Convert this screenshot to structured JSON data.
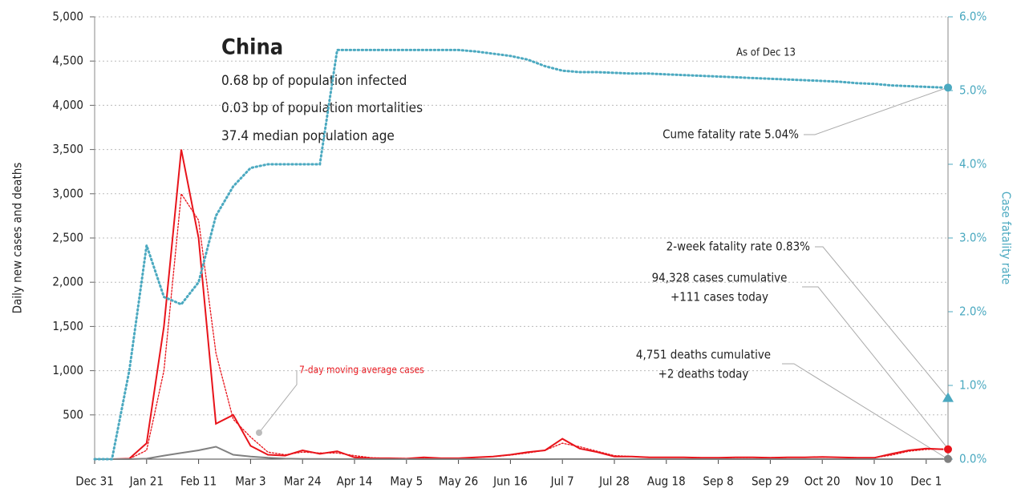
{
  "chart_data": {
    "type": "line",
    "title": "China",
    "subtitle": [
      "0.68 bp of population infected",
      "0.03 bp of population mortalities",
      "37.4 median population age"
    ],
    "ylabel": "Daily new cases and deaths",
    "y2label": "Case fatality rate",
    "categories": [
      "Dec 31",
      null,
      null,
      "Jan 21",
      null,
      null,
      "Feb 11",
      null,
      null,
      "Mar 3",
      null,
      null,
      "Mar 24",
      null,
      null,
      "Apr 14",
      null,
      null,
      "May 5",
      null,
      null,
      "May 26",
      null,
      null,
      "Jun 16",
      null,
      null,
      "Jul 7",
      null,
      null,
      "Jul 28",
      null,
      null,
      "Aug 18",
      null,
      null,
      "Sep 8",
      null,
      null,
      "Sep 29",
      null,
      null,
      "Oct 20",
      null,
      null,
      "Nov 10",
      null,
      null,
      "Dec 1",
      null
    ],
    "series": [
      {
        "name": "Daily new cases",
        "color": "#e8141b",
        "style": "solid",
        "values": [
          0,
          0,
          5,
          180,
          1500,
          3500,
          2500,
          400,
          500,
          150,
          50,
          40,
          100,
          60,
          90,
          20,
          10,
          10,
          5,
          20,
          10,
          10,
          20,
          30,
          50,
          80,
          100,
          230,
          120,
          80,
          30,
          30,
          20,
          20,
          20,
          15,
          15,
          20,
          20,
          15,
          20,
          20,
          25,
          20,
          15,
          15,
          60,
          100,
          120,
          111
        ]
      },
      {
        "name": "7-day moving average cases",
        "color": "#e8141b",
        "style": "dotted",
        "values": [
          0,
          0,
          3,
          100,
          1000,
          3000,
          2700,
          1200,
          450,
          250,
          80,
          50,
          80,
          70,
          70,
          40,
          15,
          10,
          8,
          15,
          12,
          12,
          18,
          28,
          45,
          70,
          100,
          180,
          140,
          90,
          40,
          30,
          22,
          20,
          20,
          17,
          16,
          18,
          19,
          17,
          19,
          20,
          22,
          20,
          17,
          16,
          45,
          90,
          110,
          115
        ]
      },
      {
        "name": "Daily new deaths",
        "color": "#808080",
        "style": "solid",
        "values": [
          0,
          0,
          0,
          5,
          40,
          70,
          100,
          140,
          50,
          30,
          15,
          5,
          3,
          2,
          1,
          1,
          0,
          0,
          0,
          0,
          0,
          0,
          0,
          0,
          0,
          0,
          0,
          1,
          1,
          1,
          0,
          0,
          0,
          0,
          0,
          0,
          0,
          0,
          0,
          0,
          0,
          0,
          0,
          0,
          0,
          0,
          0,
          1,
          1,
          2
        ]
      },
      {
        "name": "Case fatality rate",
        "color": "#4ba9c0",
        "style": "dotted",
        "axis": "y2",
        "values": [
          0,
          0,
          1.2,
          2.9,
          2.2,
          2.1,
          2.4,
          3.3,
          3.7,
          3.95,
          4.0,
          4.0,
          4.0,
          4.0,
          5.55,
          5.55,
          5.55,
          5.55,
          5.55,
          5.55,
          5.55,
          5.55,
          5.53,
          5.5,
          5.47,
          5.42,
          5.33,
          5.27,
          5.25,
          5.25,
          5.24,
          5.23,
          5.23,
          5.22,
          5.21,
          5.2,
          5.19,
          5.18,
          5.17,
          5.16,
          5.15,
          5.14,
          5.13,
          5.12,
          5.1,
          5.09,
          5.07,
          5.06,
          5.05,
          5.04
        ]
      }
    ],
    "markers": [
      {
        "value": 0.83,
        "axis": "y2",
        "color": "#4ba9c0"
      }
    ],
    "annotations": [
      "As of Dec 13",
      "Cume fatality rate 5.04%",
      "2-week fatality rate 0.83%",
      "94,328 cases cumulative",
      "+111 cases today",
      "4,751 deaths cumulative",
      "+2 deaths today",
      "7-day moving average cases"
    ],
    "ylim": [
      0,
      5000
    ],
    "yticks": [
      {
        "value": 500,
        "label": "500"
      },
      {
        "value": 1000,
        "label": "1,000"
      },
      {
        "value": 1500,
        "label": "1,500"
      },
      {
        "value": 2000,
        "label": "2,000"
      },
      {
        "value": 2500,
        "label": "2,500"
      },
      {
        "value": 3000,
        "label": "3,000"
      },
      {
        "value": 3500,
        "label": "3,500"
      },
      {
        "value": 4000,
        "label": "4,000"
      },
      {
        "value": 4500,
        "label": "4,500"
      },
      {
        "value": 5000,
        "label": "5,000"
      }
    ],
    "y2lim": [
      0,
      6
    ],
    "y2ticks": [
      {
        "value": 0,
        "label": "0.0%"
      },
      {
        "value": 1,
        "label": "1.0%"
      },
      {
        "value": 2,
        "label": "2.0%"
      },
      {
        "value": 3,
        "label": "3.0%"
      },
      {
        "value": 4,
        "label": "4.0%"
      },
      {
        "value": 5,
        "label": "5.0%"
      },
      {
        "value": 6,
        "label": "6.0%"
      }
    ],
    "grid": true
  }
}
